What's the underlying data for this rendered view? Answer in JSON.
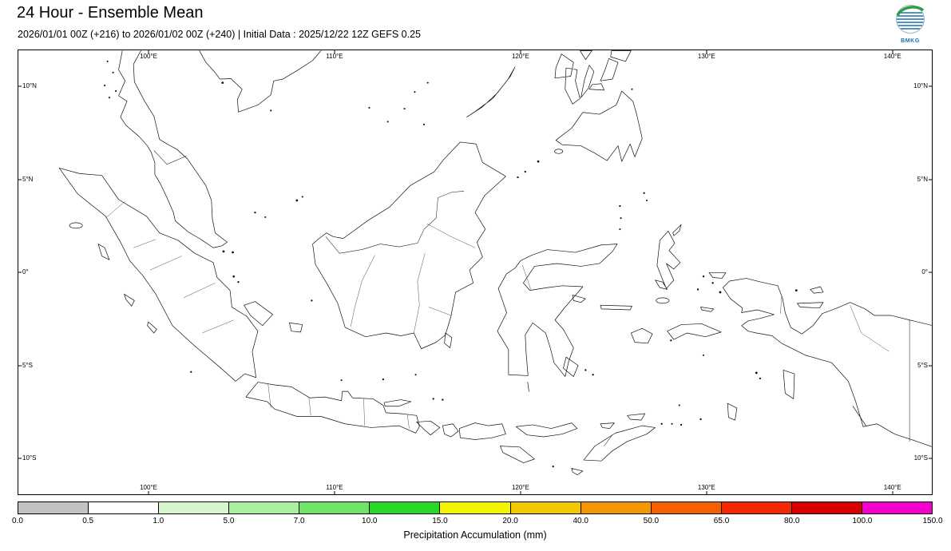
{
  "header": {
    "title": "24 Hour - Ensemble Mean",
    "subtitle": "2026/01/01 00Z (+216) to 2026/01/02 00Z (+240) | Initial Data : 2025/12/22 12Z GEFS 0.25",
    "logo_text": "BMKG"
  },
  "map": {
    "extent": {
      "lon_min": 93.0,
      "lon_max": 142.2,
      "lat_min": -12.0,
      "lat_max": 11.95
    },
    "lon_ticks": [
      {
        "label": "100°E",
        "lon": 100
      },
      {
        "label": "110°E",
        "lon": 110
      },
      {
        "label": "120°E",
        "lon": 120
      },
      {
        "label": "130°E",
        "lon": 130
      },
      {
        "label": "140°E",
        "lon": 140
      }
    ],
    "lat_ticks": [
      {
        "label": "10°N",
        "lat": 10
      },
      {
        "label": "5°N",
        "lat": 5
      },
      {
        "label": "0°",
        "lat": 0
      },
      {
        "label": "5°S",
        "lat": -5
      },
      {
        "label": "10°S",
        "lat": -10
      }
    ]
  },
  "colorbar": {
    "label": "Precipitation Accumulation (mm)",
    "ticks": [
      "0.0",
      "0.5",
      "1.0",
      "5.0",
      "7.0",
      "10.0",
      "15.0",
      "20.0",
      "40.0",
      "50.0",
      "65.0",
      "80.0",
      "100.0",
      "150.0"
    ],
    "colors": [
      "#c2c2c2",
      "#ffffff",
      "#d6f6d0",
      "#a8f0a0",
      "#70e468",
      "#28d828",
      "#f4f400",
      "#f4c800",
      "#f49800",
      "#f46000",
      "#f42800",
      "#d60000",
      "#f400cc"
    ]
  }
}
